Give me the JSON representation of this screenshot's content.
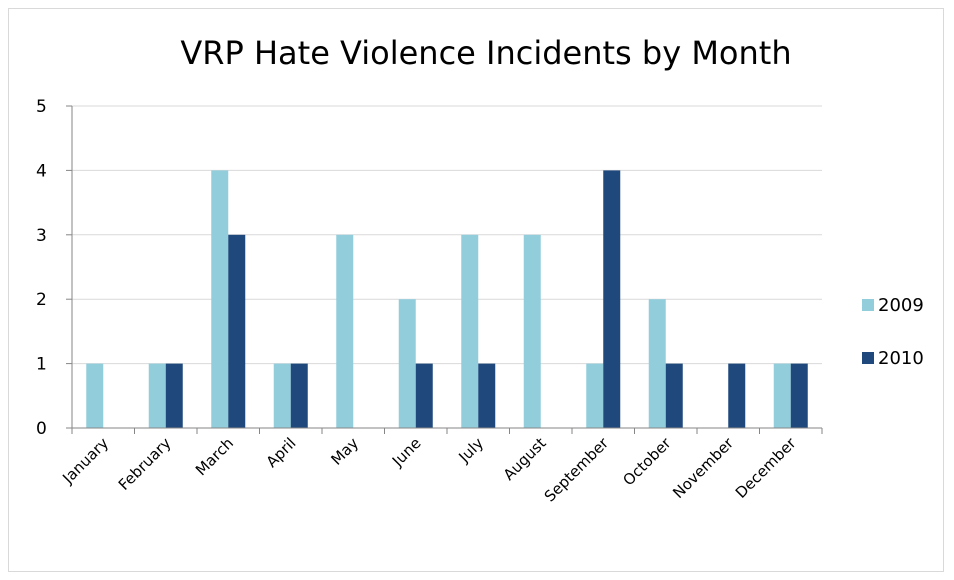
{
  "chart_data": {
    "type": "bar",
    "title": "VRP Hate Violence Incidents by Month",
    "xlabel": "",
    "ylabel": "",
    "ylim": [
      0,
      5
    ],
    "yticks": [
      0,
      1,
      2,
      3,
      4,
      5
    ],
    "grid": true,
    "legend_position": "right",
    "categories": [
      "January",
      "February",
      "March",
      "April",
      "May",
      "June",
      "July",
      "August",
      "September",
      "October",
      "November",
      "December"
    ],
    "series": [
      {
        "name": "2009",
        "color": "#92cddc",
        "values": [
          1,
          1,
          4,
          1,
          3,
          2,
          3,
          3,
          1,
          2,
          0,
          1
        ]
      },
      {
        "name": "2010",
        "color": "#1f497d",
        "values": [
          0,
          1,
          3,
          1,
          0,
          1,
          1,
          0,
          4,
          1,
          1,
          1
        ]
      }
    ]
  }
}
